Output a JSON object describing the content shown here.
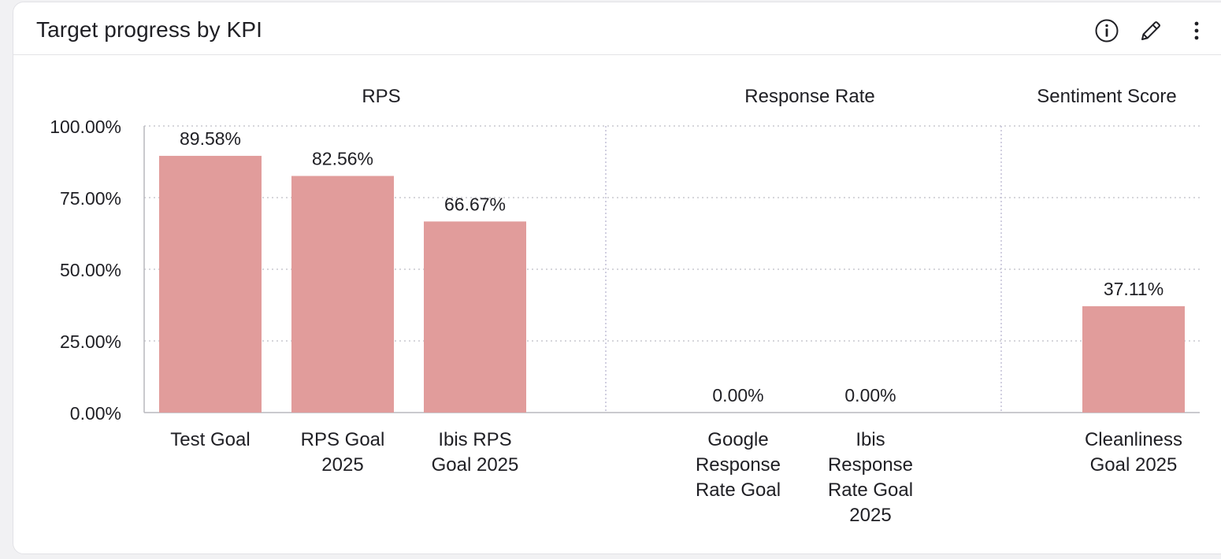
{
  "header": {
    "title": "Target progress by KPI",
    "icons": [
      "info-icon",
      "pencil-icon",
      "more-vertical-icon"
    ]
  },
  "colors": {
    "bar": "#e19c9b",
    "grid": "#c9c9cf",
    "group_divider": "#c2bfd6",
    "axis": "#b9b9be",
    "text": "#1f1f24"
  },
  "chart_data": {
    "type": "bar",
    "ylim": [
      0,
      100
    ],
    "yticks": [
      0,
      25,
      50,
      75,
      100
    ],
    "ytick_labels": [
      "0.00%",
      "25.00%",
      "50.00%",
      "75.00%",
      "100.00%"
    ],
    "grid": true,
    "groups": [
      {
        "name": "RPS",
        "categories": [
          {
            "label": [
              "Test Goal"
            ],
            "value": 89.58,
            "value_label": "89.58%"
          },
          {
            "label": [
              "RPS Goal",
              "2025"
            ],
            "value": 82.56,
            "value_label": "82.56%"
          },
          {
            "label": [
              "Ibis RPS",
              "Goal 2025"
            ],
            "value": 66.67,
            "value_label": "66.67%"
          }
        ]
      },
      {
        "name": "Response Rate",
        "categories": [
          {
            "label": [
              "Google",
              "Response",
              "Rate Goal"
            ],
            "value": 0,
            "value_label": "0.00%"
          },
          {
            "label": [
              "Ibis",
              "Response",
              "Rate Goal",
              "2025"
            ],
            "value": 0,
            "value_label": "0.00%"
          }
        ]
      },
      {
        "name": "Sentiment Score",
        "categories": [
          {
            "label": [
              "Cleanliness",
              "Goal 2025"
            ],
            "value": 37.11,
            "value_label": "37.11%"
          }
        ]
      }
    ]
  }
}
